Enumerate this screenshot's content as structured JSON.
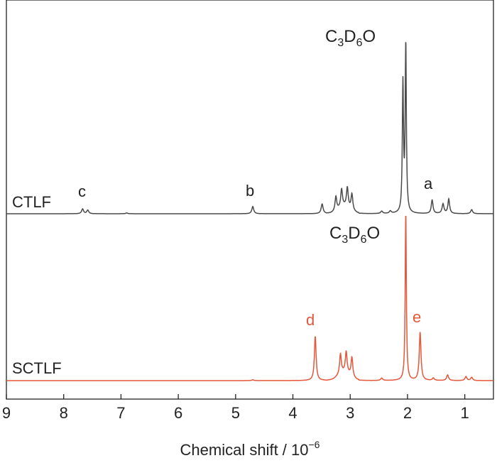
{
  "chart_data": {
    "type": "line",
    "title": "",
    "xlabel": "Chemical shift / 10",
    "xlabel_exponent": "−6",
    "ylabel": "",
    "xlim": [
      9,
      0.5
    ],
    "x_reversed": true,
    "xticks": [
      {
        "value": 9,
        "label": "9"
      },
      {
        "value": 8,
        "label": "8"
      },
      {
        "value": 7,
        "label": "7"
      },
      {
        "value": 6,
        "label": "6"
      },
      {
        "value": 5,
        "label": "5"
      },
      {
        "value": 4,
        "label": "4"
      },
      {
        "value": 3,
        "label": "3"
      },
      {
        "value": 2,
        "label": "2"
      },
      {
        "value": 1,
        "label": "1"
      }
    ],
    "grid": false,
    "series": [
      {
        "name": "CTLF",
        "color": "#4a4a4a",
        "peaks": [
          {
            "shift": 7.67,
            "height": 0.06,
            "label": "c"
          },
          {
            "shift": 7.58,
            "height": 0.045
          },
          {
            "shift": 6.9,
            "height": 0.01
          },
          {
            "shift": 4.7,
            "height": 0.09,
            "label": "b"
          },
          {
            "shift": 3.49,
            "height": 0.12
          },
          {
            "shift": 3.25,
            "height": 0.18
          },
          {
            "shift": 3.15,
            "height": 0.22
          },
          {
            "shift": 3.05,
            "height": 0.24
          },
          {
            "shift": 2.97,
            "height": 0.2
          },
          {
            "shift": 2.45,
            "height": 0.03
          },
          {
            "shift": 2.3,
            "height": 0.03
          },
          {
            "shift": 2.08,
            "height": 1.6
          },
          {
            "shift": 2.03,
            "height": 2.1,
            "label": "C3D6O"
          },
          {
            "shift": 1.57,
            "height": 0.17,
            "label": "a"
          },
          {
            "shift": 1.38,
            "height": 0.12
          },
          {
            "shift": 1.28,
            "height": 0.18
          },
          {
            "shift": 0.88,
            "height": 0.05
          }
        ]
      },
      {
        "name": "SCTLF",
        "color": "#e4573a",
        "peaks": [
          {
            "shift": 4.7,
            "height": 0.01
          },
          {
            "shift": 3.61,
            "height": 0.55,
            "label": "d"
          },
          {
            "shift": 3.17,
            "height": 0.25
          },
          {
            "shift": 3.07,
            "height": 0.26
          },
          {
            "shift": 2.97,
            "height": 0.24
          },
          {
            "shift": 2.45,
            "height": 0.03
          },
          {
            "shift": 2.03,
            "height": 2.1,
            "label": "C3D6O"
          },
          {
            "shift": 1.78,
            "height": 0.6,
            "label": "e"
          },
          {
            "shift": 1.55,
            "height": 0.03
          },
          {
            "shift": 1.3,
            "height": 0.07
          },
          {
            "shift": 0.98,
            "height": 0.05
          },
          {
            "shift": 0.88,
            "height": 0.04
          }
        ]
      }
    ],
    "annotations": [
      {
        "text": "C",
        "sub1": "3",
        "mid": "D",
        "sub2": "6",
        "tail": "O",
        "series": 0
      },
      {
        "text": "C",
        "sub1": "3",
        "mid": "D",
        "sub2": "6",
        "tail": "O",
        "series": 1
      }
    ]
  }
}
